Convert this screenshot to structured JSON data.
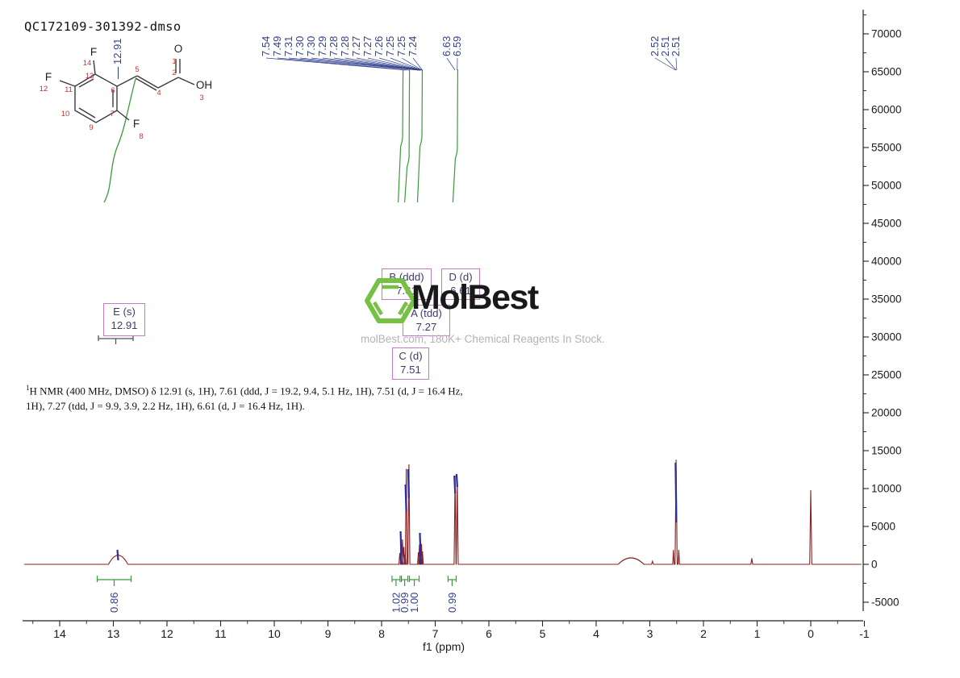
{
  "page": {
    "title": "QC172109-301392-dmso"
  },
  "watermark": {
    "brand": "MolBest",
    "tagline": "molBest.com, 180K+ Chemical Reagents In Stock."
  },
  "caption": {
    "sup": "1",
    "text": "H NMR (400 MHz, DMSO) δ 12.91 (s, 1H), 7.61 (ddd, J = 19.2, 9.4, 5.1 Hz, 1H), 7.51 (d, J = 16.4 Hz, 1H), 7.27 (tdd, J = 9.9, 3.9, 2.2 Hz, 1H), 6.61 (d, J = 16.4 Hz, 1H)."
  },
  "assignments": [
    {
      "label": "E (s)",
      "shift": "12.91"
    },
    {
      "label": "B (ddd)",
      "shift": "7.61"
    },
    {
      "label": "D (d)",
      "shift": "6.61"
    },
    {
      "label": "A (tdd)",
      "shift": "7.27"
    },
    {
      "label": "C (d)",
      "shift": "7.51"
    }
  ],
  "structure": {
    "atom_labels": [
      "F",
      "14",
      "F",
      "12",
      "F",
      "8",
      "O",
      "1",
      "OH",
      "3",
      "2",
      "4",
      "5",
      "6",
      "7",
      "9",
      "10",
      "11",
      "13"
    ]
  },
  "chart_data": {
    "type": "line",
    "title": "QC172109-301392-dmso",
    "x_axis": {
      "label": "f1 (ppm)",
      "direction": "reversed",
      "range": [
        14.66,
        -1.09
      ],
      "ticks": [
        14,
        13,
        12,
        11,
        10,
        9,
        8,
        7,
        6,
        5,
        4,
        3,
        2,
        1,
        0,
        -1
      ]
    },
    "y_axis": {
      "range": [
        -7450,
        73200
      ],
      "ticks": [
        70000,
        65000,
        60000,
        55000,
        50000,
        45000,
        40000,
        35000,
        30000,
        25000,
        20000,
        15000,
        10000,
        5000,
        0,
        -5000
      ]
    },
    "peaks": [
      {
        "ppm": 12.91,
        "intensity": 1200,
        "width": 3,
        "broad": true
      },
      {
        "ppm": 7.66,
        "intensity": 1500,
        "width": 1.1
      },
      {
        "ppm": 7.635,
        "intensity": 2800,
        "width": 1.1
      },
      {
        "ppm": 7.61,
        "intensity": 3300,
        "width": 1.1
      },
      {
        "ppm": 7.585,
        "intensity": 2300,
        "width": 1.1
      },
      {
        "ppm": 7.56,
        "intensity": 1300,
        "width": 1.1
      },
      {
        "ppm": 7.54,
        "intensity": 12600,
        "width": 1.2
      },
      {
        "ppm": 7.49,
        "intensity": 13200,
        "width": 1.2
      },
      {
        "ppm": 7.315,
        "intensity": 1600,
        "width": 1
      },
      {
        "ppm": 7.295,
        "intensity": 2600,
        "width": 1
      },
      {
        "ppm": 7.275,
        "intensity": 3200,
        "width": 1
      },
      {
        "ppm": 7.255,
        "intensity": 2700,
        "width": 1
      },
      {
        "ppm": 7.238,
        "intensity": 1700,
        "width": 1
      },
      {
        "ppm": 6.63,
        "intensity": 11700,
        "width": 1.2
      },
      {
        "ppm": 6.59,
        "intensity": 11200,
        "width": 1.2
      },
      {
        "ppm": 3.35,
        "intensity": 850,
        "width": 4,
        "broad": true
      },
      {
        "ppm": 2.95,
        "intensity": 400,
        "width": 1.2
      },
      {
        "ppm": 2.56,
        "intensity": 1900,
        "width": 0.9
      },
      {
        "ppm": 2.51,
        "intensity": 13800,
        "width": 1.3
      },
      {
        "ppm": 2.46,
        "intensity": 1900,
        "width": 0.9
      },
      {
        "ppm": 1.1,
        "intensity": 800,
        "width": 1.1
      },
      {
        "ppm": 0.0,
        "intensity": 9800,
        "width": 1.3
      }
    ],
    "integrals": [
      {
        "ppm": 12.91,
        "value": "0.86"
      },
      {
        "ppm": 7.61,
        "value": "1.02"
      },
      {
        "ppm": 7.51,
        "value": "0.99"
      },
      {
        "ppm": 7.27,
        "value": "1.00"
      },
      {
        "ppm": 6.61,
        "value": "0.99"
      }
    ],
    "peak_labels": {
      "acid": [
        "12.91"
      ],
      "aromatic": [
        "7.54",
        "7.49",
        "7.31",
        "7.30",
        "7.30",
        "7.29",
        "7.28",
        "7.28",
        "7.27",
        "7.27",
        "7.26",
        "7.25",
        "7.25",
        "7.24"
      ],
      "vinyl": [
        "6.63",
        "6.59"
      ],
      "solvent": [
        "2.52",
        "2.51",
        "2.51"
      ]
    },
    "colors": {
      "spectrum": "#8b2020",
      "integral": "#3a9a3a",
      "labels": "#33418f",
      "assignment_box": "#c878c8",
      "logo_green": "#76c043",
      "tagline": "#b3b3b3"
    }
  }
}
